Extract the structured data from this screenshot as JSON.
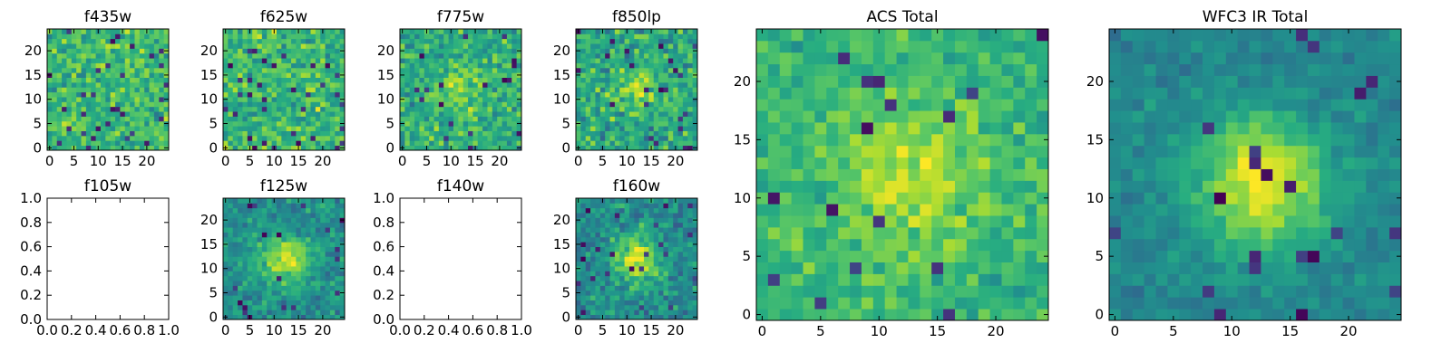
{
  "figure": {
    "colormap": "viridis",
    "colors": {
      "low": "#440154",
      "mid": "#21918c",
      "high": "#fde725"
    }
  },
  "chart_data": [
    {
      "id": "f435w",
      "type": "heatmap",
      "title": "f435w",
      "image_size": [
        25,
        25
      ],
      "xlim": [
        -0.5,
        24.5
      ],
      "ylim": [
        -0.5,
        24.5
      ],
      "xticks": [
        0,
        5,
        10,
        15,
        20
      ],
      "yticks": [
        0,
        5,
        10,
        15,
        20
      ],
      "pattern": "noise",
      "background_level": 0.68,
      "noise": 0.17,
      "dark_fraction": 0.05
    },
    {
      "id": "f625w",
      "type": "heatmap",
      "title": "f625w",
      "image_size": [
        25,
        25
      ],
      "xlim": [
        -0.5,
        24.5
      ],
      "ylim": [
        -0.5,
        24.5
      ],
      "xticks": [
        0,
        5,
        10,
        15,
        20
      ],
      "yticks": [
        0,
        5,
        10,
        15,
        20
      ],
      "pattern": "noise",
      "background_level": 0.66,
      "noise": 0.18,
      "dark_fraction": 0.05
    },
    {
      "id": "f775w",
      "type": "heatmap",
      "title": "f775w",
      "image_size": [
        25,
        25
      ],
      "xlim": [
        -0.5,
        24.5
      ],
      "ylim": [
        -0.5,
        24.5
      ],
      "xticks": [
        0,
        5,
        10,
        15,
        20
      ],
      "yticks": [
        0,
        5,
        10,
        15,
        20
      ],
      "pattern": "source",
      "background_level": 0.62,
      "noise": 0.17,
      "dark_fraction": 0.03,
      "source_center": [
        12,
        12
      ],
      "source_sigma": 3.5,
      "source_amplitude": 0.22
    },
    {
      "id": "f850lp",
      "type": "heatmap",
      "title": "f850lp",
      "image_size": [
        25,
        25
      ],
      "xlim": [
        -0.5,
        24.5
      ],
      "ylim": [
        -0.5,
        24.5
      ],
      "xticks": [
        0,
        5,
        10,
        15,
        20
      ],
      "yticks": [
        0,
        5,
        10,
        15,
        20
      ],
      "pattern": "source",
      "background_level": 0.6,
      "noise": 0.18,
      "dark_fraction": 0.04,
      "source_center": [
        12,
        12
      ],
      "source_sigma": 3.5,
      "source_amplitude": 0.2
    },
    {
      "id": "f105w",
      "type": "empty",
      "title": "f105w",
      "xlim": [
        0.0,
        1.0
      ],
      "ylim": [
        0.0,
        1.0
      ],
      "xticks": [
        "0.0",
        "0.2",
        "0.4",
        "0.6",
        "0.8",
        "1.0"
      ],
      "yticks": [
        "0.0",
        "0.2",
        "0.4",
        "0.6",
        "0.8",
        "1.0"
      ]
    },
    {
      "id": "f125w",
      "type": "heatmap",
      "title": "f125w",
      "image_size": [
        25,
        25
      ],
      "xlim": [
        -0.5,
        24.5
      ],
      "ylim": [
        -0.5,
        24.5
      ],
      "xticks": [
        0,
        5,
        10,
        15,
        20
      ],
      "yticks": [
        0,
        5,
        10,
        15,
        20
      ],
      "pattern": "source",
      "background_level": 0.5,
      "noise": 0.13,
      "dark_fraction": 0.03,
      "source_center": [
        12,
        12
      ],
      "source_sigma": 3.5,
      "source_amplitude": 0.42
    },
    {
      "id": "f140w",
      "type": "empty",
      "title": "f140w",
      "xlim": [
        0.0,
        1.0
      ],
      "ylim": [
        0.0,
        1.0
      ],
      "xticks": [
        "0.0",
        "0.2",
        "0.4",
        "0.6",
        "0.8",
        "1.0"
      ],
      "yticks": [
        "0.0",
        "0.2",
        "0.4",
        "0.6",
        "0.8",
        "1.0"
      ]
    },
    {
      "id": "f160w",
      "type": "heatmap",
      "title": "f160w",
      "image_size": [
        25,
        25
      ],
      "xlim": [
        -0.5,
        24.5
      ],
      "ylim": [
        -0.5,
        24.5
      ],
      "xticks": [
        0,
        5,
        10,
        15,
        20
      ],
      "yticks": [
        0,
        5,
        10,
        15,
        20
      ],
      "pattern": "source",
      "background_level": 0.48,
      "noise": 0.14,
      "dark_fraction": 0.04,
      "source_center": [
        12,
        12
      ],
      "source_sigma": 3.5,
      "source_amplitude": 0.44
    },
    {
      "id": "acs_total",
      "type": "heatmap",
      "title": "ACS Total",
      "image_size": [
        25,
        25
      ],
      "xlim": [
        -0.5,
        24.5
      ],
      "ylim": [
        -0.5,
        24.5
      ],
      "xticks": [
        0,
        5,
        10,
        15,
        20
      ],
      "yticks": [
        0,
        5,
        10,
        15,
        20
      ],
      "pattern": "source",
      "background_level": 0.66,
      "noise": 0.11,
      "dark_fraction": 0.025,
      "source_center": [
        12.5,
        11.5
      ],
      "source_sigma": 4.5,
      "source_amplitude": 0.22
    },
    {
      "id": "wfc3_ir_total",
      "type": "heatmap",
      "title": "WFC3 IR Total",
      "image_size": [
        25,
        25
      ],
      "xlim": [
        -0.5,
        24.5
      ],
      "ylim": [
        -0.5,
        24.5
      ],
      "xticks": [
        0,
        5,
        10,
        15,
        20
      ],
      "yticks": [
        0,
        5,
        10,
        15,
        20
      ],
      "pattern": "source",
      "background_level": 0.46,
      "noise": 0.08,
      "dark_fraction": 0.04,
      "source_center": [
        12.5,
        11.5
      ],
      "source_sigma": 4.0,
      "source_amplitude": 0.5
    }
  ]
}
